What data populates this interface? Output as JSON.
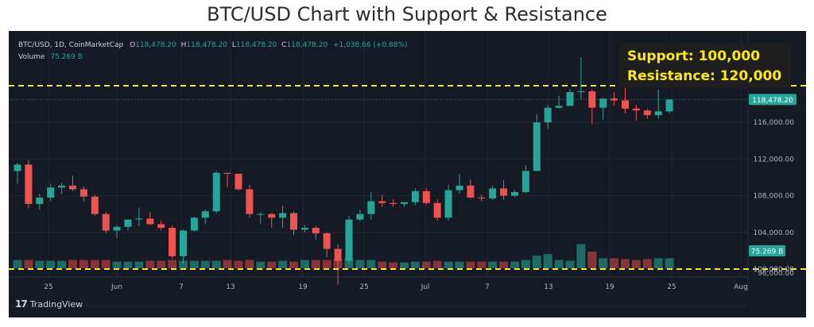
{
  "page": {
    "title": "BTC/USD Chart with Support & Resistance"
  },
  "header": {
    "symbol": "BTC/USD, 1D, CoinMarketCap",
    "open_label": "O",
    "open": "118,478.20",
    "high_label": "H",
    "high": "118,478.20",
    "low_label": "L",
    "low": "118,478.20",
    "close_label": "C",
    "close": "118,478.20",
    "change": "+1,038.66 (+0.88%)",
    "volume_label": "Volume",
    "volume": "75.269 B"
  },
  "annotation": {
    "support_label": "Support:",
    "support_value": "100,000",
    "resistance_label": "Resistance:",
    "resistance_value": "120,000"
  },
  "branding": {
    "logo_mark": "17",
    "logo_text": "TradingView"
  },
  "colors": {
    "up": "#26a69a",
    "down": "#ef5350",
    "background": "#161a25",
    "level_line": "#ffe81a",
    "volume_up": "#1e6b64",
    "volume_down": "#86333a"
  },
  "chart_data": {
    "type": "candlestick",
    "title": "BTC/USD Chart with Support & Resistance",
    "price_axis": {
      "ticks": [
        "96,000.00",
        "100,000.00",
        "104,000.00",
        "108,000.00",
        "112,000.00",
        "116,000.00"
      ],
      "current_price_label": "118,478.20",
      "current_volume_label": "75.269 B"
    },
    "time_axis": {
      "labels": [
        "25",
        "Jun",
        "7",
        "13",
        "19",
        "25",
        "Jul",
        "7",
        "13",
        "19",
        "25",
        "Aug"
      ]
    },
    "support": 100000,
    "resistance": 120000,
    "candles": [
      [
        110700,
        111600,
        109300,
        111400
      ],
      [
        111400,
        111900,
        106600,
        107100
      ],
      [
        107100,
        108200,
        106500,
        107800
      ],
      [
        107800,
        109300,
        107400,
        108900
      ],
      [
        108900,
        109400,
        108200,
        109100
      ],
      [
        109100,
        110200,
        108500,
        108700
      ],
      [
        108700,
        109000,
        107400,
        107900
      ],
      [
        107900,
        108100,
        105800,
        106000
      ],
      [
        106000,
        106200,
        103900,
        104200
      ],
      [
        104200,
        104800,
        103400,
        104600
      ],
      [
        104600,
        105400,
        104200,
        105400
      ],
      [
        105400,
        106700,
        104700,
        105500
      ],
      [
        105500,
        106200,
        104800,
        104900
      ],
      [
        104900,
        105300,
        104200,
        104500
      ],
      [
        104500,
        104800,
        101100,
        101400
      ],
      [
        101400,
        104300,
        100600,
        104200
      ],
      [
        104200,
        105700,
        104100,
        105600
      ],
      [
        105600,
        106500,
        104900,
        106300
      ],
      [
        106300,
        110700,
        106100,
        110500
      ],
      [
        110500,
        110500,
        108900,
        110400
      ],
      [
        110400,
        110400,
        108600,
        108700
      ],
      [
        108700,
        109200,
        105600,
        106000
      ],
      [
        106000,
        106200,
        104900,
        106000
      ],
      [
        106000,
        106100,
        104500,
        105600
      ],
      [
        105600,
        106900,
        104500,
        106100
      ],
      [
        106100,
        106300,
        103700,
        104300
      ],
      [
        104300,
        104800,
        104000,
        104500
      ],
      [
        104500,
        104700,
        103200,
        103900
      ],
      [
        103900,
        104000,
        101300,
        102200
      ],
      [
        102200,
        102700,
        98300,
        100900
      ],
      [
        100900,
        105800,
        100600,
        105400
      ],
      [
        105400,
        106500,
        105200,
        106000
      ],
      [
        106000,
        108400,
        105400,
        107400
      ],
      [
        107400,
        108100,
        106800,
        107200
      ],
      [
        107200,
        107600,
        106800,
        107100
      ],
      [
        107100,
        107300,
        106800,
        107300
      ],
      [
        107300,
        108800,
        107000,
        108500
      ],
      [
        108500,
        108800,
        107000,
        107200
      ],
      [
        107200,
        107600,
        105300,
        105600
      ],
      [
        105600,
        109200,
        105300,
        108600
      ],
      [
        108600,
        110400,
        108200,
        109100
      ],
      [
        109100,
        109800,
        107700,
        107800
      ],
      [
        107800,
        108100,
        107400,
        107700
      ],
      [
        107700,
        109100,
        107500,
        108800
      ],
      [
        108800,
        109700,
        107600,
        108000
      ],
      [
        108000,
        108600,
        107800,
        108400
      ],
      [
        108400,
        111300,
        108300,
        110700
      ],
      [
        110700,
        116900,
        110700,
        116000
      ],
      [
        116000,
        117900,
        115300,
        117600
      ],
      [
        117600,
        118900,
        117500,
        117800
      ],
      [
        117800,
        119600,
        117800,
        119300
      ],
      [
        119300,
        123100,
        118500,
        119400
      ],
      [
        119400,
        119600,
        115800,
        117600
      ],
      [
        117600,
        118600,
        116300,
        118600
      ],
      [
        118600,
        119300,
        117800,
        118400
      ],
      [
        118400,
        120000,
        117000,
        117500
      ],
      [
        117500,
        117900,
        116200,
        117300
      ],
      [
        117300,
        117500,
        116400,
        116800
      ],
      [
        116800,
        119600,
        116400,
        117200
      ],
      [
        117200,
        118500,
        117000,
        118500
      ]
    ],
    "volume_relative": [
      1.0,
      1.0,
      0.9,
      0.9,
      0.9,
      1.0,
      1.0,
      1.0,
      1.0,
      0.8,
      0.8,
      0.8,
      0.9,
      0.9,
      1.0,
      0.9,
      0.9,
      0.9,
      0.9,
      1.0,
      0.9,
      1.0,
      0.8,
      0.8,
      0.9,
      0.8,
      1.0,
      1.0,
      1.0,
      1.1,
      1.2,
      1.0,
      1.0,
      0.8,
      0.7,
      0.7,
      0.8,
      0.8,
      0.9,
      0.8,
      0.8,
      0.8,
      0.8,
      0.8,
      0.8,
      0.8,
      1.0,
      1.5,
      1.7,
      1.0,
      0.9,
      2.9,
      2.0,
      1.2,
      1.2,
      1.1,
      1.0,
      1.1,
      1.2,
      1.2
    ]
  }
}
